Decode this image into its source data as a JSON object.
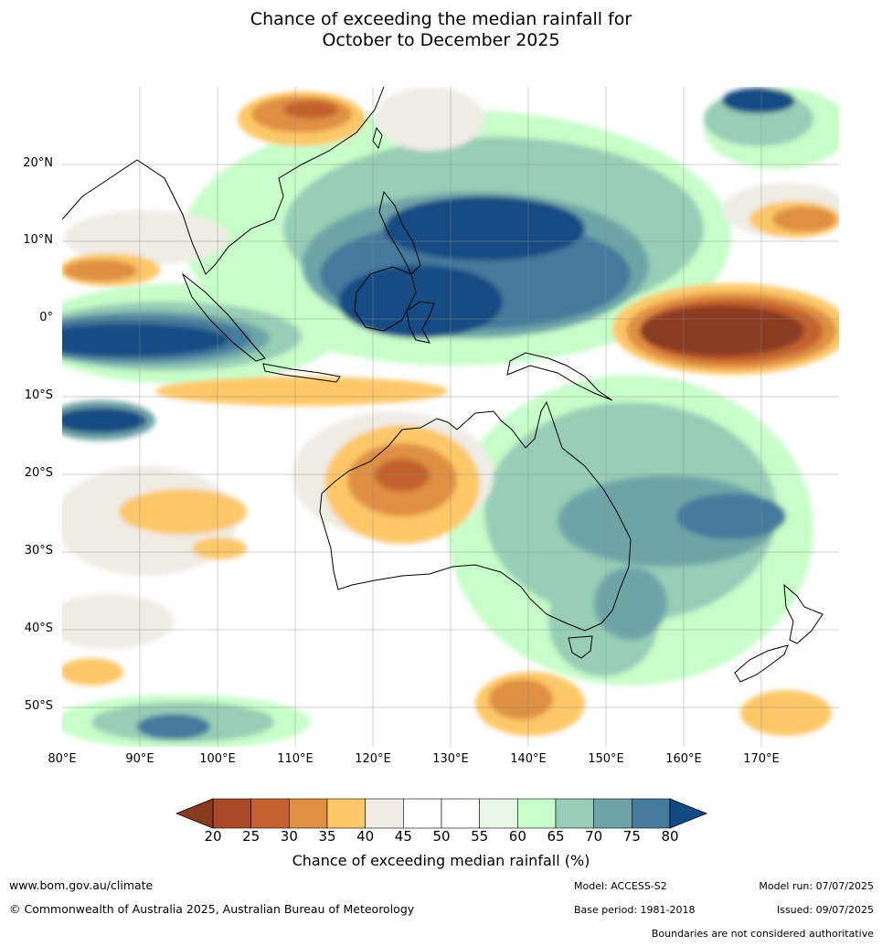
{
  "title": {
    "line1": "Chance of exceeding the median rainfall for",
    "line2": "October to December 2025"
  },
  "map": {
    "lon_range": [
      80,
      180
    ],
    "lat_range": [
      -55,
      30
    ],
    "lat_labels": [
      "20°N",
      "10°N",
      "0°",
      "10°S",
      "20°S",
      "30°S",
      "40°S",
      "50°S"
    ],
    "lon_labels": [
      "80°E",
      "90°E",
      "100°E",
      "110°E",
      "120°E",
      "130°E",
      "140°E",
      "150°E",
      "160°E",
      "170°E"
    ]
  },
  "colorbar": {
    "ticks": [
      "20",
      "25",
      "30",
      "35",
      "40",
      "45",
      "50",
      "55",
      "60",
      "65",
      "70",
      "75",
      "80"
    ],
    "colors": [
      "#a84a27",
      "#c4622f",
      "#df9043",
      "#fdc767",
      "#efece6",
      "#ffffff",
      "#ffffff",
      "#e8f6e6",
      "#c7fdc9",
      "#97cdb6",
      "#6ea4a7",
      "#447a9c"
    ],
    "under_color": "#8b3a20",
    "over_color": "#124b83",
    "label": "Chance of exceeding median rainfall (%)"
  },
  "footer": {
    "website": "www.bom.gov.au/climate",
    "copyright": "© Commonwealth of Australia 2025, Australian Bureau of Meteorology",
    "model": "Model: ACCESS-S2",
    "base_period": "Base period: 1981-2018",
    "model_run": "Model run: 07/07/2025",
    "issued": "Issued: 09/07/2025",
    "disclaimer": "Boundaries are not considered authoritative"
  }
}
